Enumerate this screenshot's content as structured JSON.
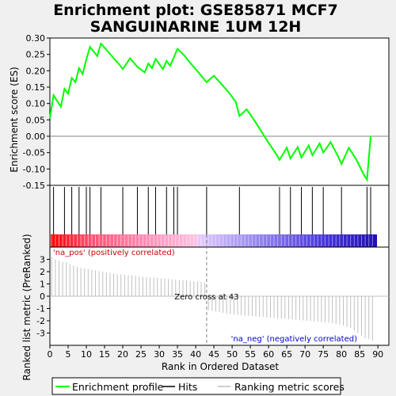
{
  "chart_data": {
    "type": "line",
    "title_line1": "Enrichment plot: GSE85871 MCF7",
    "title_line2": "SANGUINARINE 1UM 12H",
    "xlabel": "Rank in Ordered Dataset",
    "es_ylabel": "Enrichment score (ES)",
    "metric_ylabel": "Ranked list metric (PreRanked)",
    "xlim": [
      0,
      93
    ],
    "es_ylim": [
      -0.15,
      0.3
    ],
    "metric_ylim": [
      -4,
      4
    ],
    "x_ticks": [
      0,
      5,
      10,
      15,
      20,
      25,
      30,
      35,
      40,
      45,
      50,
      55,
      60,
      65,
      70,
      75,
      80,
      85,
      90
    ],
    "x_tick_labels": [
      "0",
      "5",
      "10",
      "15",
      "20",
      "25",
      "30",
      "35",
      "40",
      "45",
      "50",
      "55",
      "60",
      "65",
      "70",
      "75",
      "80",
      "85",
      "90"
    ],
    "es_ticks": [
      -0.15,
      -0.1,
      -0.05,
      0.0,
      0.05,
      0.1,
      0.15,
      0.2,
      0.25,
      0.3
    ],
    "es_tick_labels": [
      "-0.15",
      "-0.10",
      "-0.05",
      "0.00",
      "0.05",
      "0.10",
      "0.15",
      "0.20",
      "0.25",
      "0.30"
    ],
    "metric_ticks": [
      -3,
      -2,
      -1,
      0,
      1,
      2,
      3
    ],
    "metric_tick_labels": [
      "-3",
      "-2",
      "-1",
      "0",
      "1",
      "2",
      "3"
    ],
    "series": [
      {
        "name": "Enrichment profile",
        "color": "#00ff00",
        "x": [
          0,
          1,
          3,
          4,
          5,
          6,
          7,
          8,
          9,
          10,
          11,
          13,
          14,
          16,
          18,
          19,
          20,
          22,
          23,
          24,
          26,
          27,
          28,
          29,
          31,
          32,
          33,
          35,
          37,
          38,
          40,
          42,
          43,
          45,
          47,
          49,
          51,
          52,
          54,
          56,
          58,
          60,
          62,
          63,
          65,
          66,
          68,
          69,
          71,
          72,
          74,
          75,
          77,
          79,
          80,
          82,
          84,
          86,
          87,
          88
        ],
        "y": [
          0.055,
          0.125,
          0.09,
          0.145,
          0.13,
          0.178,
          0.165,
          0.208,
          0.19,
          0.235,
          0.273,
          0.245,
          0.283,
          0.258,
          0.232,
          0.22,
          0.205,
          0.238,
          0.225,
          0.212,
          0.195,
          0.222,
          0.208,
          0.236,
          0.205,
          0.23,
          0.215,
          0.267,
          0.245,
          0.23,
          0.205,
          0.178,
          0.165,
          0.185,
          0.16,
          0.135,
          0.105,
          0.062,
          0.082,
          0.05,
          0.015,
          -0.02,
          -0.053,
          -0.072,
          -0.035,
          -0.068,
          -0.033,
          -0.065,
          -0.028,
          -0.058,
          -0.022,
          -0.05,
          -0.018,
          -0.06,
          -0.085,
          -0.035,
          -0.07,
          -0.115,
          -0.133,
          0.0
        ]
      }
    ],
    "hits": [
      1,
      4,
      6,
      8,
      10,
      11,
      14,
      20,
      24,
      27,
      29,
      32,
      34,
      35,
      43,
      52,
      63,
      66,
      69,
      72,
      75,
      80,
      87,
      88
    ],
    "zero_cross": 43,
    "zero_cross_label": "Zero cross at 43",
    "pos_label": "'na_pos' (positively correlated)",
    "neg_label": "'na_neg' (negatively correlated)",
    "metric_values": [
      3.2,
      3.0,
      2.9,
      2.8,
      2.75,
      2.6,
      2.5,
      2.4,
      2.3,
      2.25,
      2.2,
      2.15,
      2.1,
      2.05,
      2.0,
      1.95,
      1.9,
      1.85,
      1.8,
      1.78,
      1.75,
      1.72,
      1.7,
      1.65,
      1.6,
      1.58,
      1.55,
      1.52,
      1.5,
      1.48,
      1.45,
      1.42,
      1.4,
      1.38,
      1.35,
      1.32,
      1.3,
      1.28,
      1.25,
      1.22,
      1.2,
      1.15,
      1.1,
      -1.15,
      -1.2,
      -1.25,
      -1.3,
      -1.35,
      -1.4,
      -1.45,
      -1.5,
      -1.52,
      -1.55,
      -1.58,
      -1.6,
      -1.62,
      -1.65,
      -1.68,
      -1.7,
      -1.72,
      -1.75,
      -1.78,
      -1.8,
      -1.82,
      -1.85,
      -1.88,
      -1.9,
      -1.92,
      -1.95,
      -1.97,
      -2.0,
      -2.02,
      -2.05,
      -2.08,
      -2.1,
      -2.12,
      -2.15,
      -2.2,
      -2.25,
      -2.3,
      -2.4,
      -2.5,
      -2.6,
      -2.8,
      -3.0,
      -3.2,
      -3.4,
      -3.5,
      -3.6
    ],
    "legend": {
      "items": [
        "Enrichment profile",
        "Hits",
        "Ranking metric scores"
      ],
      "colors": [
        "#00ff00",
        "#000000",
        "#c0c0c0"
      ]
    },
    "colors": {
      "pos_label": "#cc0000",
      "neg_label": "#0000cc",
      "zero_line": "#808080",
      "metric_bars": "#c0c0c0"
    }
  }
}
